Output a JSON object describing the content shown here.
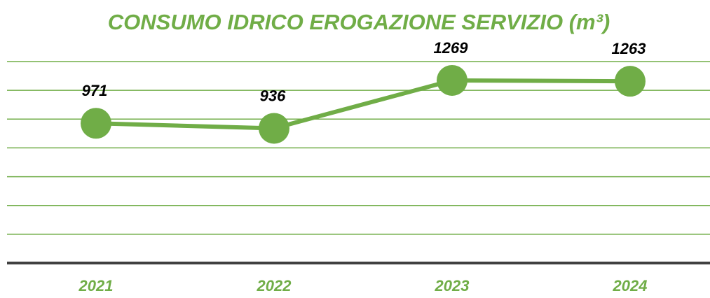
{
  "chart_data": {
    "type": "line",
    "title": "CONSUMO IDRICO EROGAZIONE SERVIZIO (m³)",
    "categories": [
      "2021",
      "2022",
      "2023",
      "2024"
    ],
    "series": [
      {
        "name": "Consumo idrico",
        "color": "#70ad47",
        "values": [
          971,
          936,
          1269,
          1263
        ]
      }
    ],
    "ylim": [
      0,
      1400
    ],
    "yticks": [
      0,
      200,
      400,
      600,
      800,
      1000,
      1200,
      1400
    ],
    "grid": true
  }
}
